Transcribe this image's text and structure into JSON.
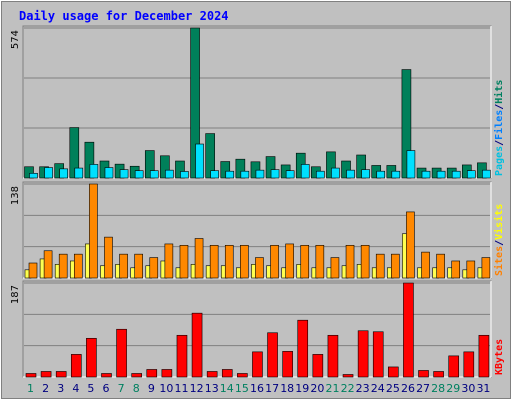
{
  "chart_data": {
    "type": "bar",
    "title": "Daily usage for December 2024",
    "categories": [
      "1",
      "2",
      "3",
      "4",
      "5",
      "6",
      "7",
      "8",
      "9",
      "10",
      "11",
      "12",
      "13",
      "14",
      "15",
      "16",
      "17",
      "18",
      "19",
      "20",
      "21",
      "22",
      "23",
      "24",
      "25",
      "26",
      "27",
      "28",
      "29",
      "30",
      "31"
    ],
    "weekend_days": [
      "1",
      "7",
      "8",
      "14",
      "15",
      "21",
      "22",
      "28",
      "29"
    ],
    "panels": [
      {
        "id": "hits-files-pages",
        "max_label": "574",
        "ymax": 574,
        "side_labels": [
          {
            "text": "Pages",
            "color": "#00c0e0"
          },
          {
            "text": "/",
            "color": "#000080"
          },
          {
            "text": "Files",
            "color": "#0080ff"
          },
          {
            "text": "/",
            "color": "#000080"
          },
          {
            "text": "Hits",
            "color": "#008060"
          }
        ],
        "series": [
          {
            "name": "Hits",
            "color": "#00805a",
            "values": [
              43,
              43,
              55,
              193,
              137,
              65,
              53,
              45,
              105,
              85,
              65,
              574,
              170,
              63,
              72,
              62,
              82,
              50,
              95,
              43,
              100,
              65,
              88,
              48,
              48,
              415,
              38,
              38,
              38,
              50,
              58
            ]
          },
          {
            "name": "Files",
            "color": "#00e0ff",
            "values": [
              18,
              40,
              35,
              38,
              52,
              40,
              32,
              28,
              28,
              30,
              25,
              130,
              28,
              26,
              26,
              30,
              32,
              28,
              52,
              26,
              38,
              30,
              32,
              26,
              26,
              105,
              26,
              26,
              26,
              28,
              30
            ]
          },
          {
            "name": "Pages",
            "color": "#00c0e0",
            "values": [
              16,
              18,
              18,
              20,
              20,
              18,
              18,
              16,
              16,
              16,
              16,
              25,
              16,
              16,
              16,
              16,
              16,
              16,
              18,
              16,
              16,
              16,
              16,
              16,
              16,
              20,
              16,
              16,
              16,
              16,
              16
            ]
          }
        ]
      },
      {
        "id": "visits-sites",
        "max_label": "138",
        "ymax": 138,
        "side_labels": [
          {
            "text": "Sites",
            "color": "#ff8000"
          },
          {
            "text": "/",
            "color": "#000080"
          },
          {
            "text": "Visits",
            "color": "#ffff00"
          }
        ],
        "series": [
          {
            "name": "Visits",
            "color": "#ffff50",
            "values": [
              12,
              28,
              20,
              25,
              50,
              18,
              20,
              15,
              18,
              25,
              15,
              20,
              18,
              18,
              15,
              20,
              18,
              15,
              20,
              15,
              15,
              18,
              20,
              15,
              15,
              65,
              15,
              15,
              15,
              12,
              15
            ]
          },
          {
            "name": "Sites",
            "color": "#ff8800",
            "values": [
              22,
              40,
              35,
              35,
              138,
              60,
              35,
              35,
              30,
              50,
              48,
              58,
              48,
              48,
              48,
              30,
              48,
              50,
              48,
              48,
              30,
              48,
              48,
              35,
              35,
              97,
              38,
              35,
              25,
              25,
              30
            ]
          }
        ]
      },
      {
        "id": "kbytes",
        "max_label": "187",
        "ymax": 187,
        "side_labels": [
          {
            "text": "KBytes",
            "color": "#ff0000"
          }
        ],
        "series": [
          {
            "name": "KBytes",
            "color": "#ff0000",
            "values": [
              7,
              11,
              11,
              45,
              77,
              7,
              95,
              7,
              15,
              15,
              83,
              127,
              11,
              15,
              7,
              50,
              88,
              51,
              113,
              45,
              83,
              5,
              92,
              90,
              20,
              187,
              13,
              11,
              42,
              50,
              83
            ]
          }
        ]
      }
    ]
  },
  "colors": {
    "background": "#c0c0c0",
    "title": "#0000ff",
    "grid": "#808080",
    "weekday_label": "#000080",
    "weekend_label": "#008060"
  }
}
